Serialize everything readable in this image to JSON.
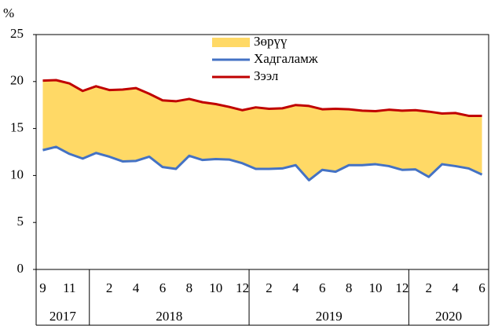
{
  "chart_data": {
    "type": "line",
    "y_unit": "%",
    "categories": [
      "9",
      null,
      "11",
      null,
      null,
      "2",
      null,
      "4",
      null,
      "6",
      null,
      "8",
      null,
      "10",
      null,
      "12",
      null,
      "2",
      null,
      "4",
      null,
      "6",
      null,
      "8",
      null,
      "10",
      null,
      "12",
      null,
      "2",
      null,
      "4",
      null,
      "6"
    ],
    "x_groups": [
      {
        "label": "2017",
        "months": 4
      },
      {
        "label": "2018",
        "months": 12
      },
      {
        "label": "2019",
        "months": 12
      },
      {
        "label": "2020",
        "months": 6
      }
    ],
    "series": [
      {
        "name": "Зөрүү",
        "color": "#ffd966",
        "kind": "area",
        "stacked_on": 1,
        "values": [
          7.4,
          7.1,
          7.5,
          7.2,
          7.1,
          7.1,
          7.65,
          7.75,
          6.7,
          7.1,
          7.2,
          6.05,
          6.15,
          5.85,
          5.6,
          5.65,
          6.55,
          6.4,
          6.4,
          6.4,
          7.9,
          6.45,
          6.7,
          5.95,
          5.8,
          5.65,
          6.0,
          6.3,
          6.3,
          6.95,
          5.4,
          5.65,
          5.6,
          6.25
        ]
      },
      {
        "name": "Хадгаламж",
        "color": "#4472c4",
        "kind": "line",
        "values": [
          12.7,
          13.05,
          12.3,
          11.8,
          12.4,
          12.0,
          11.5,
          11.55,
          12.0,
          10.9,
          10.7,
          12.1,
          11.65,
          11.75,
          11.7,
          11.3,
          10.7,
          10.7,
          10.75,
          11.1,
          9.5,
          10.6,
          10.4,
          11.1,
          11.1,
          11.2,
          11.0,
          10.6,
          10.65,
          9.85,
          11.2,
          11.0,
          10.75,
          10.1
        ]
      },
      {
        "name": "Зээл",
        "color": "#c00000",
        "kind": "line",
        "values": [
          20.1,
          20.15,
          19.8,
          19.0,
          19.5,
          19.1,
          19.15,
          19.3,
          18.7,
          18.0,
          17.9,
          18.15,
          17.8,
          17.6,
          17.3,
          16.95,
          17.25,
          17.1,
          17.15,
          17.5,
          17.4,
          17.05,
          17.1,
          17.05,
          16.9,
          16.85,
          17.0,
          16.9,
          16.95,
          16.8,
          16.6,
          16.65,
          16.35,
          16.35
        ]
      }
    ],
    "ylim": [
      0,
      25
    ],
    "yticks": [
      0,
      5,
      10,
      15,
      20,
      25
    ],
    "legend": "top"
  }
}
